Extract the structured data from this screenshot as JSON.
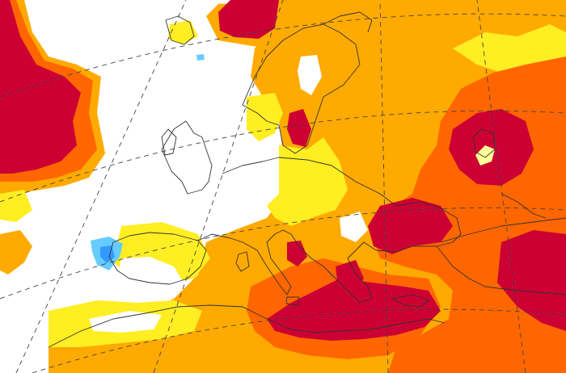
{
  "map": {
    "palette": {
      "white": "#ffffff",
      "light_yellow": "#ffff99",
      "yellow": "#ffee22",
      "orange": "#ffaa00",
      "dark_orange": "#ff6600",
      "red_orange": "#ee3300",
      "crimson": "#cc0033",
      "light_blue": "#66ccff",
      "blue": "#3399ff"
    },
    "anomaly_levels": [
      "white",
      "light_yellow",
      "yellow",
      "orange",
      "dark_orange",
      "red_orange",
      "crimson",
      "light_blue",
      "blue"
    ],
    "features": {
      "coastlines": "coastline-outline",
      "graticule": "dashed-graticule"
    }
  }
}
